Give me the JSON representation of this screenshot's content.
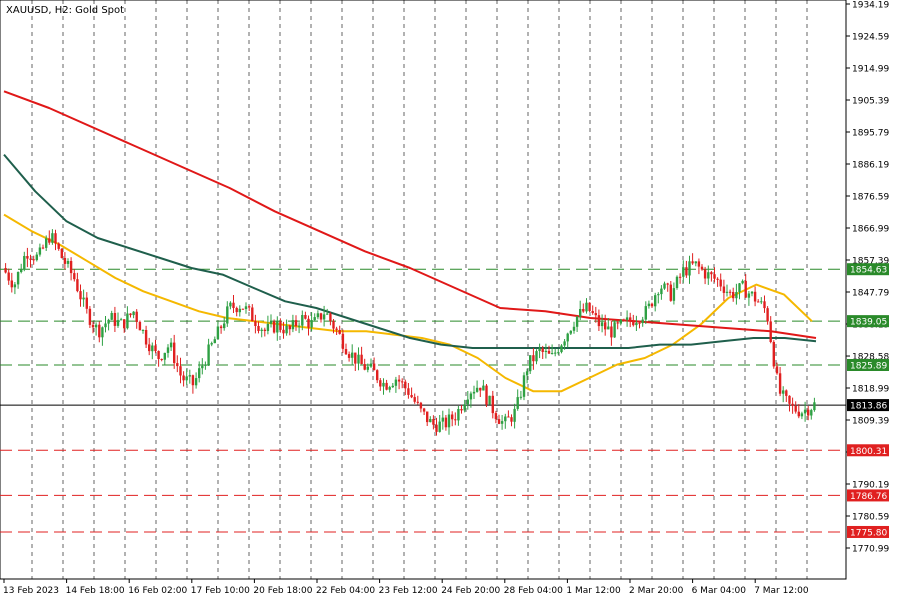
{
  "window": {
    "title": "XAUUSD, H2:  Gold Spot"
  },
  "colors": {
    "bull": "#2ea043",
    "bear": "#e02020",
    "ma_fast": "#f5b800",
    "ma_mid": "#1f5f4c",
    "ma_slow": "#e01818",
    "support_line": "#e02020",
    "resistance_line": "#2a8a2a",
    "price_line": "#000000",
    "grid": "#000000"
  },
  "chart_data": {
    "type": "candlestick",
    "title": "XAUUSD, H2:  Gold Spot",
    "symbol": "XAUUSD",
    "timeframe": "H2",
    "instrument": "Gold Spot",
    "ylim": [
      1767.0,
      1934.19
    ],
    "y_ticks": [
      "1934.19",
      "1924.59",
      "1914.99",
      "1905.39",
      "1895.79",
      "1886.19",
      "1876.59",
      "1866.99",
      "1857.39",
      "1847.79",
      "1838.19",
      "1828.58",
      "1818.99",
      "1809.39",
      "1799.79",
      "1790.19",
      "1780.59",
      "1770.99"
    ],
    "x_ticks": [
      "13 Feb 2023",
      "14 Feb 18:00",
      "16 Feb 02:00",
      "17 Feb 10:00",
      "20 Feb 18:00",
      "22 Feb 04:00",
      "23 Feb 12:00",
      "24 Feb 20:00",
      "28 Feb 04:00",
      "1 Mar 12:00",
      "2 Mar 20:00",
      "6 Mar 04:00",
      "7 Mar 12:00"
    ],
    "grid": true,
    "current_price": 1813.86,
    "resistance_levels": [
      1854.63,
      1839.05,
      1825.89
    ],
    "support_levels": [
      1800.31,
      1786.76,
      1775.8
    ],
    "price_path": [
      1855,
      1850,
      1860,
      1858,
      1865,
      1858,
      1852,
      1842,
      1836,
      1840,
      1838,
      1842,
      1834,
      1828,
      1832,
      1822,
      1820,
      1828,
      1835,
      1843,
      1844,
      1840,
      1836,
      1838,
      1836,
      1840,
      1838,
      1842,
      1836,
      1830,
      1826,
      1824,
      1820,
      1822,
      1818,
      1812,
      1808,
      1808,
      1811,
      1818,
      1820,
      1813,
      1808,
      1812,
      1826,
      1830,
      1828,
      1834,
      1840,
      1843,
      1838,
      1836,
      1838,
      1840,
      1842,
      1850,
      1847,
      1854,
      1856,
      1853,
      1851,
      1847,
      1849,
      1846,
      1842,
      1818,
      1813,
      1812,
      1814
    ],
    "series": [
      {
        "name": "MA fast",
        "values": [
          1871,
          1866,
          1862,
          1857,
          1852,
          1848,
          1845,
          1842,
          1840,
          1839,
          1838,
          1837,
          1836,
          1836,
          1835,
          1834,
          1832,
          1828,
          1822,
          1818,
          1818,
          1822,
          1826,
          1828,
          1832,
          1838,
          1846,
          1850,
          1847,
          1839
        ]
      },
      {
        "name": "MA mid",
        "values": [
          1889,
          1878,
          1869,
          1864,
          1861,
          1858,
          1855,
          1853,
          1849,
          1845,
          1843,
          1840,
          1837,
          1834,
          1832,
          1831,
          1831,
          1831,
          1831,
          1831,
          1831,
          1832,
          1832,
          1833,
          1834,
          1834,
          1833
        ]
      },
      {
        "name": "MA slow",
        "values": [
          1908,
          1903,
          1897,
          1891,
          1885,
          1879,
          1872,
          1866,
          1860,
          1855,
          1849,
          1843,
          1842,
          1840,
          1839,
          1838,
          1837,
          1836,
          1834
        ]
      }
    ]
  }
}
